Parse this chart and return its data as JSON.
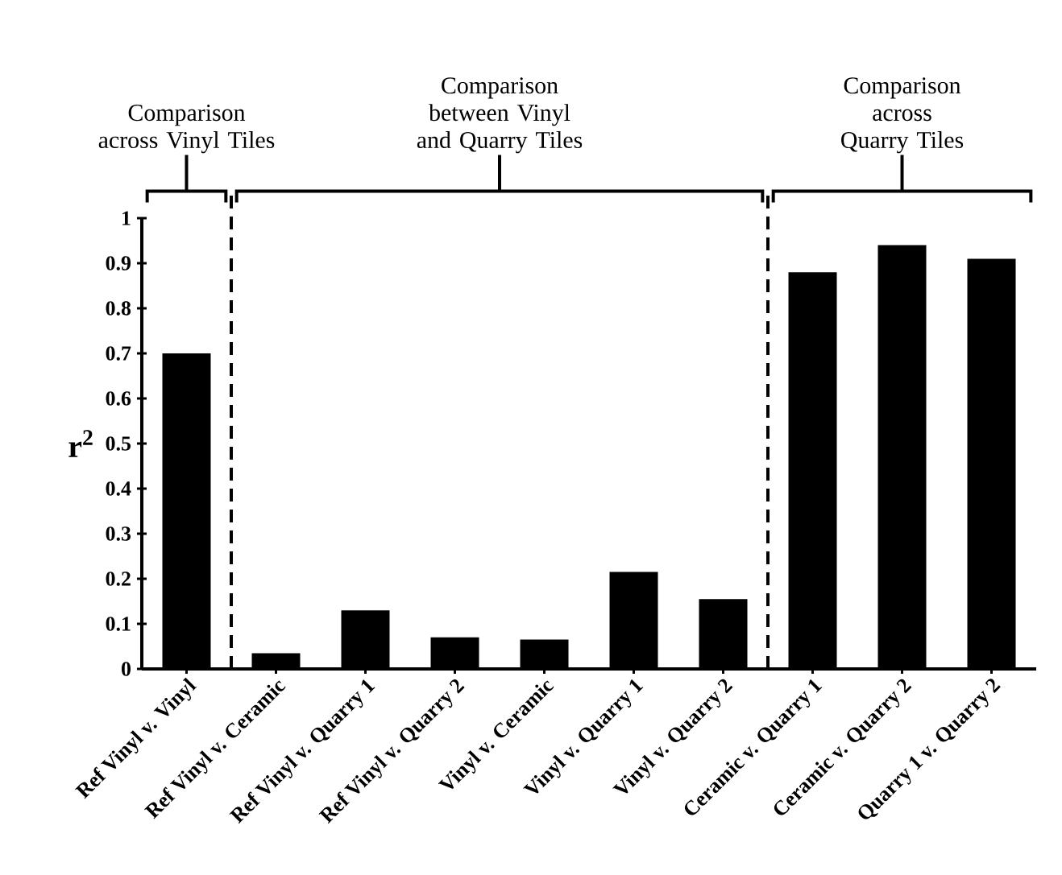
{
  "chart_data": {
    "type": "bar",
    "ylabel": "r$^{2}$",
    "categories": [
      "Ref Vinyl v. Vinyl",
      "Ref Vinyl v. Ceramic",
      "Ref Vinyl v. Quarry 1",
      "Ref Vinyl v. Quarry 2",
      "Vinyl v. Ceramic",
      "Vinyl v. Quarry 1",
      "Vinyl v. Quarry 2",
      "Ceramic v. Quarry 1",
      "Ceramic v. Quarry 2",
      "Quarry 1 v. Quarry 2"
    ],
    "values": [
      0.7,
      0.035,
      0.13,
      0.07,
      0.065,
      0.215,
      0.155,
      0.88,
      0.94,
      0.91
    ],
    "color": "#000000",
    "ylim": [
      0,
      1
    ],
    "yticks": [
      0,
      0.1,
      0.2,
      0.3,
      0.4,
      0.5,
      0.6,
      0.7,
      0.8,
      0.9,
      1
    ],
    "annotations": [
      "Comparison across Vinyl Tiles",
      "Comparison between Vinyl and Quarry Tiles",
      "Comparison across Quarry Tiles"
    ],
    "grid": false
  }
}
